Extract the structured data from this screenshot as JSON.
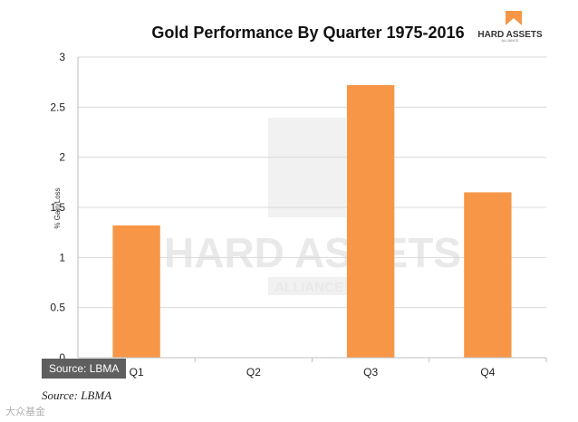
{
  "chart_data": {
    "type": "bar",
    "title": "Gold Performance By Quarter 1975-2016",
    "ylabel": "% Gain/Loss",
    "xlabel": "",
    "categories": [
      "Q1",
      "Q2",
      "Q3",
      "Q4"
    ],
    "values": [
      1.32,
      0,
      2.72,
      1.65
    ],
    "ylim": [
      0,
      3
    ],
    "yticks": [
      0,
      0.5,
      1,
      1.5,
      2,
      2.5,
      3
    ],
    "ytick_labels": [
      "0",
      "0.5",
      "1",
      "1.5",
      "2",
      "2.5",
      "3"
    ],
    "grid": true,
    "legend": "none",
    "bar_color": "#f79646",
    "grid_color": "#d9d9d9"
  },
  "watermark": {
    "line1": "HARD ASSETS",
    "line2": "ALLIANCE"
  },
  "logo": {
    "name": "HARD ASSETS",
    "sub": "ALLIANCE",
    "color": "#f79646"
  },
  "source_badge": "Source: LBMA",
  "source_note": "Source: LBMA",
  "footer_mark": "大众基金"
}
